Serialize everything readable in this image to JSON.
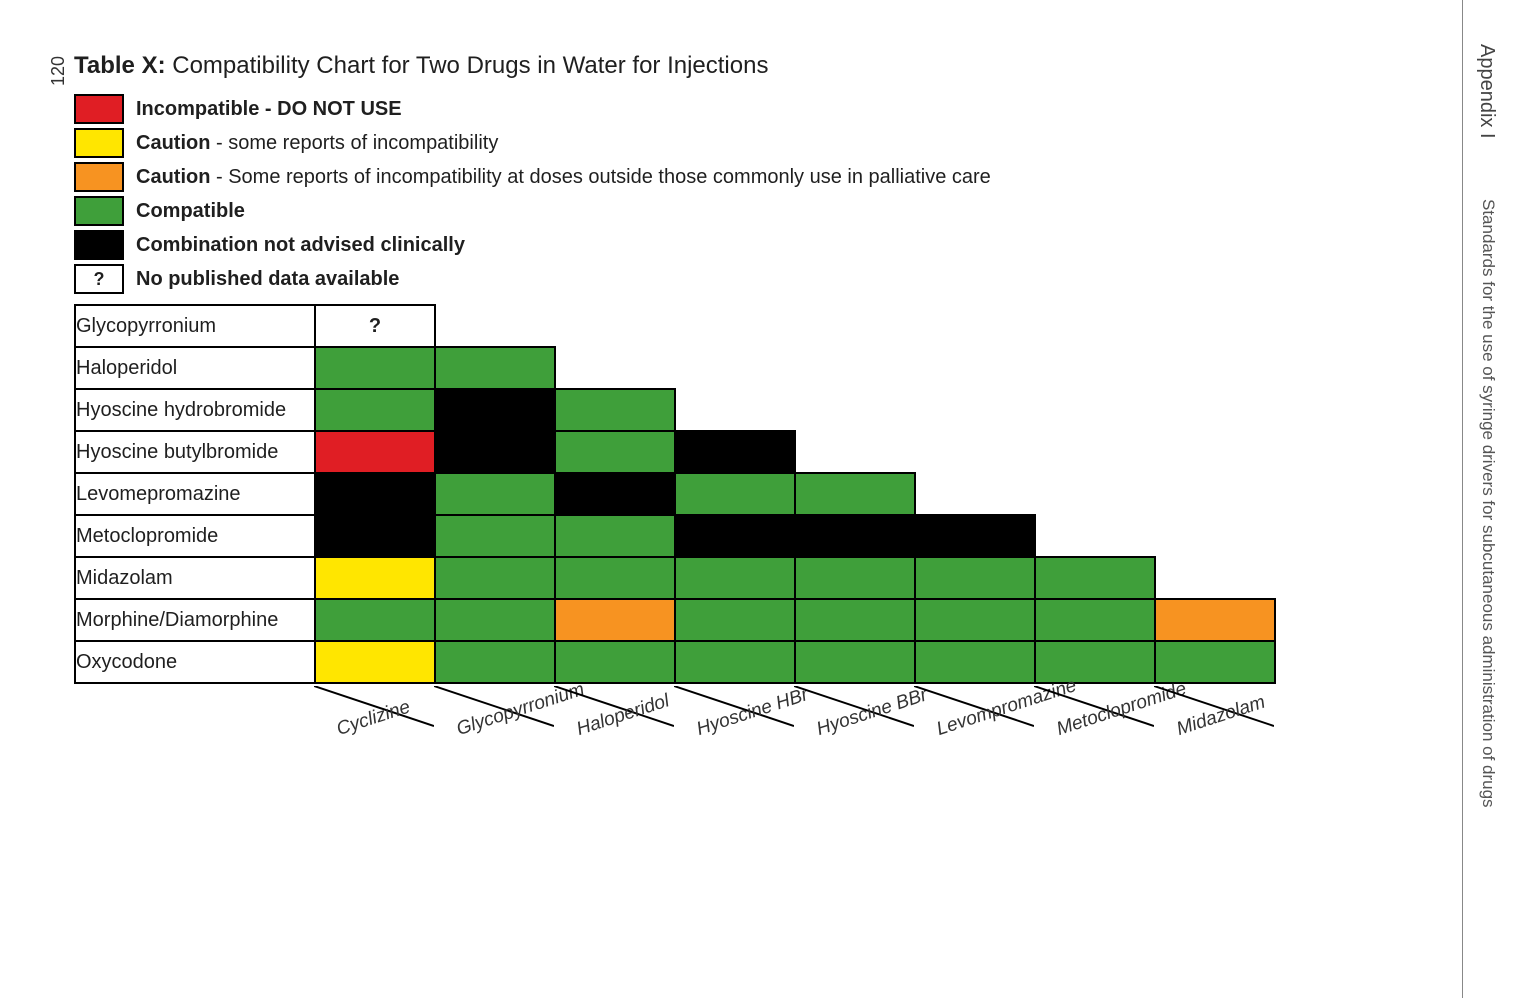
{
  "page_number": "120",
  "sidebar": {
    "appendix": "Appendix I",
    "subtitle": "Standards for the use of syringe drivers for subcutaneous administration of drugs"
  },
  "title_bold": "Table X:",
  "title_rest": " Compatibility Chart for Two Drugs in Water for Injections",
  "colors": {
    "incompatible": "#e01e24",
    "caution": "#ffe600",
    "caution_dose": "#f79321",
    "compatible": "#3f9f3a",
    "not_advised": "#000000",
    "no_data": "#ffffff"
  },
  "legend": [
    {
      "color": "incompatible",
      "text": null,
      "bold": "Incompatible - DO NOT USE",
      "rest": ""
    },
    {
      "color": "caution",
      "text": null,
      "bold": "Caution",
      "rest": " - some reports of incompatibility"
    },
    {
      "color": "caution_dose",
      "text": null,
      "bold": "Caution",
      "rest": " - Some reports of incompatibility at doses outside those commonly use in palliative care"
    },
    {
      "color": "compatible",
      "text": null,
      "bold": "Compatible",
      "rest": ""
    },
    {
      "color": "not_advised",
      "text": null,
      "bold": "Combination not advised clinically",
      "rest": ""
    },
    {
      "color": "no_data",
      "text": "?",
      "bold": "No published data available",
      "rest": ""
    }
  ],
  "rows": [
    "Glycopyrronium",
    "Haloperidol",
    "Hyoscine hydrobromide",
    "Hyoscine butylbromide",
    "Levomepromazine",
    "Metoclopromide",
    "Midazolam",
    "Morphine/Diamorphine",
    "Oxycodone"
  ],
  "columns": [
    "Cyclizine",
    "Glycopyrronium",
    "Haloperidol",
    "Hyoscine HBr",
    "Hyoscine BBr",
    "Levompromazine",
    "Metoclopromide",
    "Midazolam"
  ],
  "grid": [
    [
      {
        "c": "no_data",
        "t": "?"
      }
    ],
    [
      {
        "c": "compatible"
      },
      {
        "c": "compatible"
      }
    ],
    [
      {
        "c": "compatible"
      },
      {
        "c": "not_advised"
      },
      {
        "c": "compatible"
      }
    ],
    [
      {
        "c": "incompatible"
      },
      {
        "c": "not_advised"
      },
      {
        "c": "compatible"
      },
      {
        "c": "not_advised"
      }
    ],
    [
      {
        "c": "not_advised"
      },
      {
        "c": "compatible"
      },
      {
        "c": "not_advised"
      },
      {
        "c": "compatible"
      },
      {
        "c": "compatible"
      }
    ],
    [
      {
        "c": "not_advised"
      },
      {
        "c": "compatible"
      },
      {
        "c": "compatible"
      },
      {
        "c": "not_advised"
      },
      {
        "c": "not_advised"
      },
      {
        "c": "not_advised"
      }
    ],
    [
      {
        "c": "caution"
      },
      {
        "c": "compatible"
      },
      {
        "c": "compatible"
      },
      {
        "c": "compatible"
      },
      {
        "c": "compatible"
      },
      {
        "c": "compatible"
      },
      {
        "c": "compatible"
      }
    ],
    [
      {
        "c": "compatible"
      },
      {
        "c": "compatible"
      },
      {
        "c": "caution_dose"
      },
      {
        "c": "compatible"
      },
      {
        "c": "compatible"
      },
      {
        "c": "compatible"
      },
      {
        "c": "compatible"
      },
      {
        "c": "caution_dose"
      }
    ],
    [
      {
        "c": "caution"
      },
      {
        "c": "compatible"
      },
      {
        "c": "compatible"
      },
      {
        "c": "compatible"
      },
      {
        "c": "compatible"
      },
      {
        "c": "compatible"
      },
      {
        "c": "compatible"
      },
      {
        "c": "compatible"
      }
    ]
  ]
}
